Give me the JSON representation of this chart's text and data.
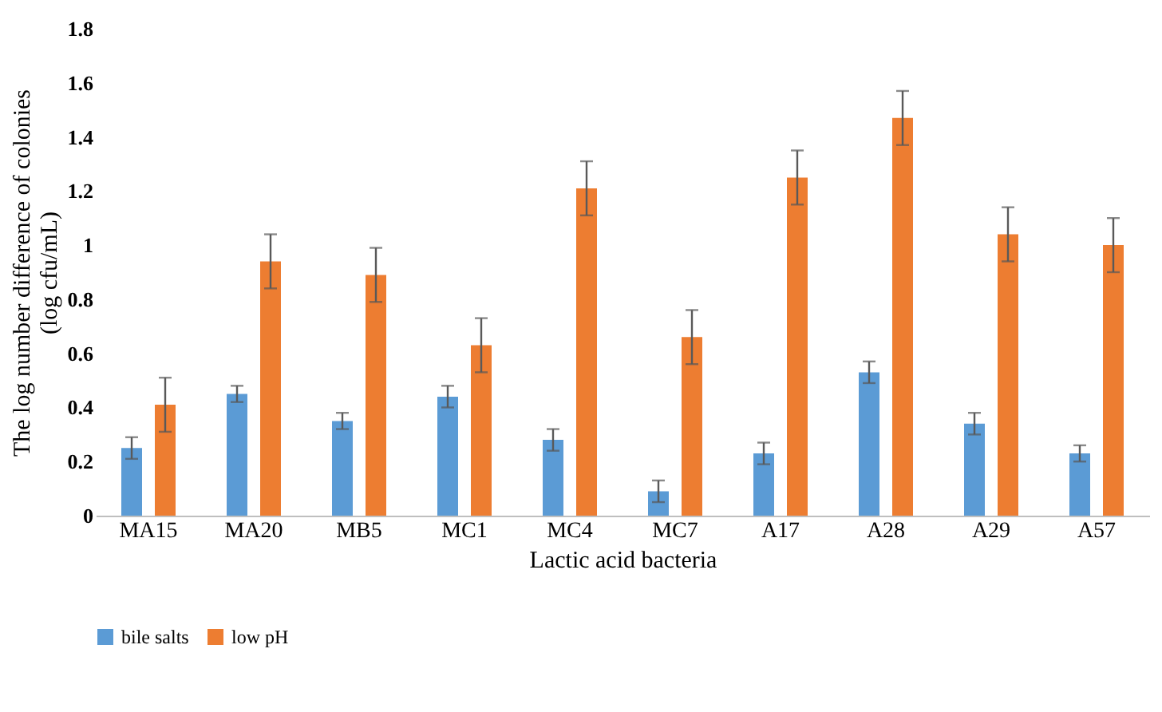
{
  "chart_data": {
    "type": "bar",
    "xlabel": "Lactic acid bacteria",
    "ylabel": "The log number difference of colonies (log cfu/mL)",
    "categories": [
      "MA15",
      "MA20",
      "MB5",
      "MC1",
      "MC4",
      "MC7",
      "A17",
      "A28",
      "A29",
      "A57"
    ],
    "series": [
      {
        "name": "bile salts",
        "color": "#5b9bd5",
        "values": [
          0.25,
          0.45,
          0.35,
          0.44,
          0.28,
          0.09,
          0.23,
          0.53,
          0.34,
          0.23
        ],
        "errors": [
          0.04,
          0.03,
          0.03,
          0.04,
          0.04,
          0.04,
          0.04,
          0.04,
          0.04,
          0.03
        ]
      },
      {
        "name": "low pH",
        "color": "#ed7d31",
        "values": [
          0.41,
          0.94,
          0.89,
          0.63,
          1.21,
          0.66,
          1.25,
          1.47,
          1.04,
          1.0
        ],
        "errors": [
          0.1,
          0.1,
          0.1,
          0.1,
          0.1,
          0.1,
          0.1,
          0.1,
          0.1,
          0.1
        ]
      }
    ],
    "ylim": [
      0,
      1.8
    ],
    "yticks": [
      0,
      0.2,
      0.4,
      0.6,
      0.8,
      1,
      1.2,
      1.4,
      1.6,
      1.8
    ],
    "grid": false,
    "legend": "bottom"
  }
}
